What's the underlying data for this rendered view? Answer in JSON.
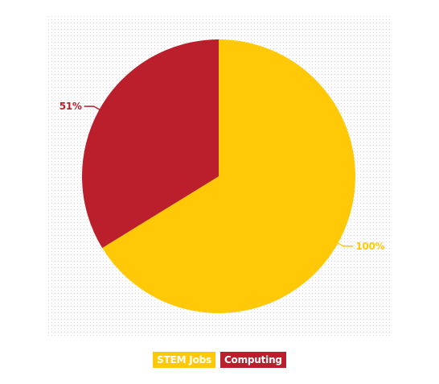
{
  "chart_data": {
    "type": "pie",
    "slices": [
      {
        "name": "STEM Jobs",
        "value": 100,
        "label": "100%",
        "color": "#ffc907"
      },
      {
        "name": "Computing",
        "value": 51,
        "label": "51%",
        "color": "#bb1f2b"
      }
    ],
    "legend": {
      "position": "bottom-center",
      "items": [
        {
          "label": "STEM Jobs",
          "color": "#ffc907"
        },
        {
          "label": "Computing",
          "color": "#bb1f2b"
        }
      ]
    },
    "background": "dotted-grid"
  }
}
